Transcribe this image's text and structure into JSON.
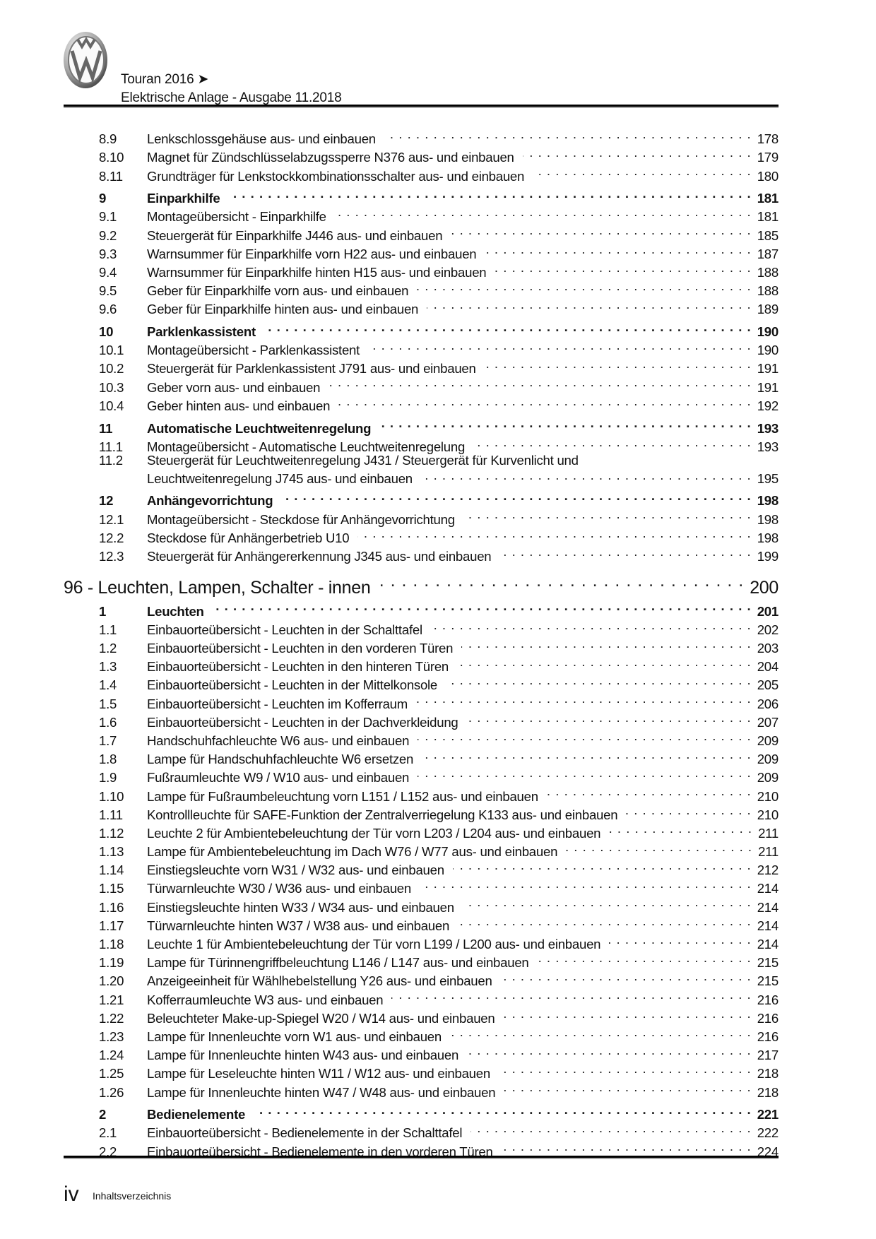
{
  "header": {
    "logo": "VW",
    "line1": "Touran 2016 ➤",
    "line2": "Elektrische Anlage - Ausgabe 11.2018"
  },
  "toc": [
    {
      "n": "8.9",
      "t": "Lenkschlossgehäuse aus- und einbauen",
      "p": "178"
    },
    {
      "n": "8.10",
      "t": "Magnet für Zündschlüsselabzugssperre N376 aus- und einbauen",
      "p": "179"
    },
    {
      "n": "8.11",
      "t": "Grundträger für Lenkstockkombinationsschalter aus- und einbauen",
      "p": "180"
    },
    {
      "n": "9",
      "t": "Einparkhilfe",
      "p": "181",
      "k": "major"
    },
    {
      "n": "9.1",
      "t": "Montageübersicht - Einparkhilfe",
      "p": "181"
    },
    {
      "n": "9.2",
      "t": "Steuergerät für Einparkhilfe J446 aus- und einbauen",
      "p": "185"
    },
    {
      "n": "9.3",
      "t": "Warnsummer für Einparkhilfe vorn H22 aus- und einbauen",
      "p": "187"
    },
    {
      "n": "9.4",
      "t": "Warnsummer für Einparkhilfe hinten H15 aus- und einbauen",
      "p": "188"
    },
    {
      "n": "9.5",
      "t": "Geber für Einparkhilfe vorn aus- und einbauen",
      "p": "188"
    },
    {
      "n": "9.6",
      "t": "Geber für Einparkhilfe hinten aus- und einbauen",
      "p": "189"
    },
    {
      "n": "10",
      "t": "Parklenkassistent",
      "p": "190",
      "k": "major"
    },
    {
      "n": "10.1",
      "t": "Montageübersicht - Parklenkassistent",
      "p": "190"
    },
    {
      "n": "10.2",
      "t": "Steuergerät für Parklenkassistent J791 aus- und einbauen",
      "p": "191"
    },
    {
      "n": "10.3",
      "t": "Geber vorn aus- und einbauen",
      "p": "191"
    },
    {
      "n": "10.4",
      "t": "Geber hinten aus- und einbauen",
      "p": "192"
    },
    {
      "n": "11",
      "t": "Automatische Leuchtweitenregelung",
      "p": "193",
      "k": "major"
    },
    {
      "n": "11.1",
      "t": "Montageübersicht - Automatische Leuchtweitenregelung",
      "p": "193"
    },
    {
      "n": "11.2",
      "t": "Steuergerät für Leuchtweitenregelung J431 / Steuergerät für Kurvenlicht und",
      "t2": "Leuchtweitenregelung J745 aus- und einbauen",
      "p": "195"
    },
    {
      "n": "12",
      "t": "Anhängevorrichtung",
      "p": "198",
      "k": "major"
    },
    {
      "n": "12.1",
      "t": "Montageübersicht - Steckdose für Anhängevorrichtung",
      "p": "198"
    },
    {
      "n": "12.2",
      "t": "Steckdose für Anhängerbetrieb U10",
      "p": "198"
    },
    {
      "n": "12.3",
      "t": "Steuergerät für Anhängererkennung J345 aus- und einbauen",
      "p": "199"
    },
    {
      "n": "",
      "t": "96 - Leuchten, Lampen, Schalter - innen",
      "p": "200",
      "k": "chapter"
    },
    {
      "n": "1",
      "t": "Leuchten",
      "p": "201",
      "k": "major"
    },
    {
      "n": "1.1",
      "t": "Einbauorteübersicht - Leuchten in der Schalttafel",
      "p": "202"
    },
    {
      "n": "1.2",
      "t": "Einbauorteübersicht - Leuchten in den vorderen Türen",
      "p": "203"
    },
    {
      "n": "1.3",
      "t": "Einbauorteübersicht - Leuchten in den hinteren Türen",
      "p": "204"
    },
    {
      "n": "1.4",
      "t": "Einbauorteübersicht - Leuchten in der Mittelkonsole",
      "p": "205"
    },
    {
      "n": "1.5",
      "t": "Einbauorteübersicht - Leuchten im Kofferraum",
      "p": "206"
    },
    {
      "n": "1.6",
      "t": "Einbauorteübersicht - Leuchten in der Dachverkleidung",
      "p": "207"
    },
    {
      "n": "1.7",
      "t": "Handschuhfachleuchte W6 aus- und einbauen",
      "p": "209"
    },
    {
      "n": "1.8",
      "t": "Lampe für Handschuhfachleuchte W6 ersetzen",
      "p": "209"
    },
    {
      "n": "1.9",
      "t": "Fußraumleuchte W9 / W10 aus- und einbauen",
      "p": "209"
    },
    {
      "n": "1.10",
      "t": "Lampe für Fußraumbeleuchtung vorn L151 / L152 aus- und einbauen",
      "p": "210"
    },
    {
      "n": "1.11",
      "t": "Kontrollleuchte für SAFE-Funktion der Zentralverriegelung K133 aus- und einbauen",
      "p": "210"
    },
    {
      "n": "1.12",
      "t": "Leuchte 2 für Ambientebeleuchtung der Tür vorn L203 / L204 aus- und einbauen",
      "p": "211"
    },
    {
      "n": "1.13",
      "t": "Lampe für Ambientebeleuchtung im Dach W76 / W77 aus- und einbauen",
      "p": "211"
    },
    {
      "n": "1.14",
      "t": "Einstiegsleuchte vorn W31 / W32 aus- und einbauen",
      "p": "212"
    },
    {
      "n": "1.15",
      "t": "Türwarnleuchte W30 / W36 aus- und einbauen",
      "p": "214"
    },
    {
      "n": "1.16",
      "t": "Einstiegsleuchte hinten W33 / W34 aus- und einbauen",
      "p": "214"
    },
    {
      "n": "1.17",
      "t": "Türwarnleuchte hinten W37 / W38 aus- und einbauen",
      "p": "214"
    },
    {
      "n": "1.18",
      "t": "Leuchte 1 für Ambientebeleuchtung der Tür vorn L199 / L200 aus- und einbauen",
      "p": "214"
    },
    {
      "n": "1.19",
      "t": "Lampe für Türinnengriffbeleuchtung L146 / L147 aus- und einbauen",
      "p": "215"
    },
    {
      "n": "1.20",
      "t": "Anzeigeeinheit für Wählhebelstellung Y26 aus- und einbauen",
      "p": "215"
    },
    {
      "n": "1.21",
      "t": "Kofferraumleuchte W3 aus- und einbauen",
      "p": "216"
    },
    {
      "n": "1.22",
      "t": "Beleuchteter Make-up-Spiegel W20 / W14 aus- und einbauen",
      "p": "216"
    },
    {
      "n": "1.23",
      "t": "Lampe für Innenleuchte vorn W1 aus- und einbauen",
      "p": "216"
    },
    {
      "n": "1.24",
      "t": "Lampe für Innenleuchte hinten W43 aus- und einbauen",
      "p": "217"
    },
    {
      "n": "1.25",
      "t": "Lampe für Leseleuchte hinten W11 / W12 aus- und einbauen",
      "p": "218"
    },
    {
      "n": "1.26",
      "t": "Lampe für Innenleuchte hinten W47 / W48 aus- und einbauen",
      "p": "218"
    },
    {
      "n": "2",
      "t": "Bedienelemente",
      "p": "221",
      "k": "major"
    },
    {
      "n": "2.1",
      "t": "Einbauorteübersicht - Bedienelemente in der Schalttafel",
      "p": "222"
    },
    {
      "n": "2.2",
      "t": "Einbauorteübersicht - Bedienelemente in den vorderen Türen",
      "p": "224"
    }
  ],
  "footer": {
    "page": "iv",
    "label": "Inhaltsverzeichnis"
  }
}
